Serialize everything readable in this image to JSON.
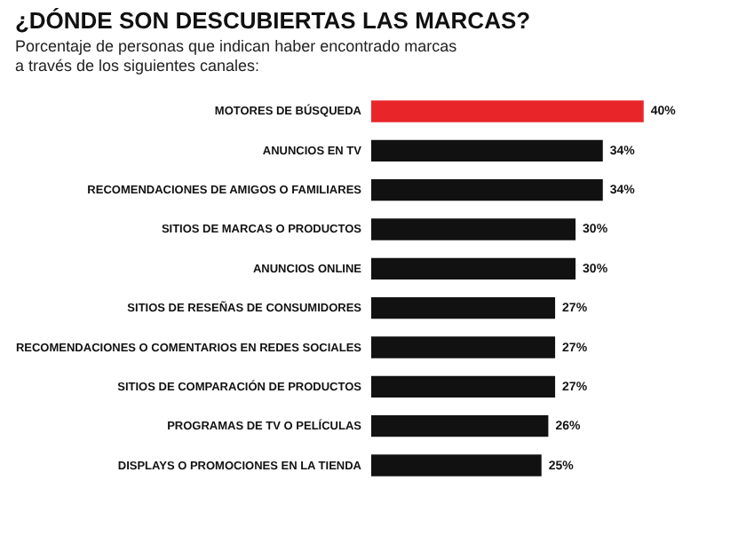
{
  "chart_data": {
    "type": "bar",
    "orientation": "horizontal",
    "tick_labels": "y",
    "title": "¿DÓNDE SON DESCUBIERTAS LAS MARCAS?",
    "subtitle": "Porcentaje de personas que indican haber encontrado marcas\na través de los siguientes canales:",
    "categories": [
      "MOTORES DE BÚSQUEDA",
      "ANUNCIOS EN TV",
      "RECOMENDACIONES DE AMIGOS O FAMILIARES",
      "SITIOS DE MARCAS O PRODUCTOS",
      "ANUNCIOS ONLINE",
      "SITIOS DE RESEÑAS DE CONSUMIDORES",
      "RECOMENDACIONES O COMENTARIOS EN REDES SOCIALES",
      "SITIOS DE COMPARACIÓN DE PRODUCTOS",
      "PROGRAMAS DE TV O PELÍCULAS",
      "DISPLAYS O PROMOCIONES EN LA TIENDA"
    ],
    "values": [
      40,
      34,
      34,
      30,
      30,
      27,
      27,
      27,
      26,
      25
    ],
    "value_labels": [
      "40%",
      "34%",
      "34%",
      "30%",
      "30%",
      "27%",
      "27%",
      "27%",
      "26%",
      "25%"
    ],
    "colors": [
      "#e8262a",
      "#111111",
      "#111111",
      "#111111",
      "#111111",
      "#111111",
      "#111111",
      "#111111",
      "#111111",
      "#111111"
    ]
  }
}
